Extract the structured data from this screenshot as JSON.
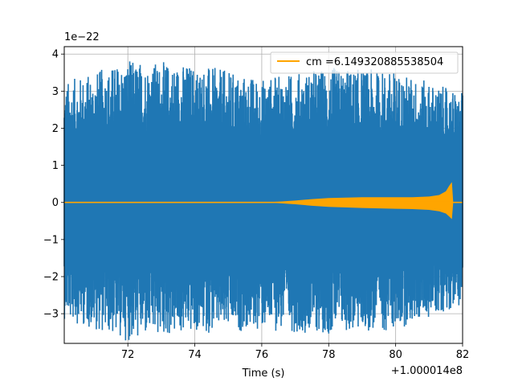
{
  "chart_data": {
    "type": "line",
    "xlabel": "Time (s)",
    "ylabel": "",
    "x_offset_label": "+1.000014e8",
    "y_scale_label": "1e−22",
    "xlim": [
      70.1,
      82.0
    ],
    "ylim": [
      -3.8,
      4.2
    ],
    "x_ticks": [
      72,
      74,
      76,
      78,
      80,
      82
    ],
    "x_tick_labels": [
      "72",
      "74",
      "76",
      "78",
      "80",
      "82"
    ],
    "y_ticks": [
      -3,
      -2,
      -1,
      0,
      1,
      2,
      3,
      4
    ],
    "y_tick_labels": [
      "−3",
      "−2",
      "−1",
      "0",
      "1",
      "2",
      "3",
      "4"
    ],
    "grid": true,
    "legend_position": "top-right",
    "series": [
      {
        "name": "",
        "color": "#1f77b4",
        "kind": "noise-band",
        "envelope": {
          "x": [
            70.1,
            72,
            74,
            76,
            78,
            80,
            82
          ],
          "upper": [
            2.9,
            3.5,
            3.4,
            3.0,
            3.3,
            3.2,
            2.6
          ],
          "lower": [
            -2.8,
            -3.4,
            -3.2,
            -3.1,
            -3.2,
            -3.1,
            -2.4
          ]
        }
      },
      {
        "name": "cm =6.149320885538504",
        "color": "#ffa500",
        "kind": "chirp",
        "x": [
          70.1,
          76.0,
          76.5,
          77.0,
          77.5,
          78.0,
          79.0,
          80.0,
          80.5,
          81.0,
          81.3,
          81.5,
          81.6,
          81.68,
          81.72,
          82.0
        ],
        "upper": [
          0.0,
          0.0,
          0.02,
          0.05,
          0.09,
          0.12,
          0.14,
          0.14,
          0.14,
          0.16,
          0.2,
          0.3,
          0.45,
          0.55,
          0.0,
          0.0
        ],
        "lower": [
          0.0,
          0.0,
          -0.02,
          -0.05,
          -0.09,
          -0.12,
          -0.15,
          -0.17,
          -0.18,
          -0.2,
          -0.24,
          -0.3,
          -0.38,
          -0.45,
          0.0,
          0.0
        ]
      }
    ]
  }
}
